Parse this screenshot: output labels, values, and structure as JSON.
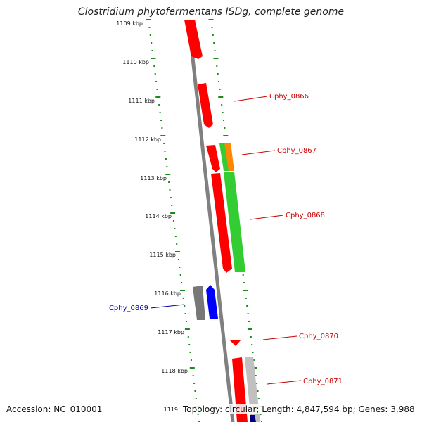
{
  "title": "Clostridium phytofermentans ISDg, complete genome",
  "kbp_ticks": [
    {
      "label": "1109 kbp"
    },
    {
      "label": "1110 kbp"
    },
    {
      "label": "1111 kbp"
    },
    {
      "label": "1112 kbp"
    },
    {
      "label": "1113 kbp"
    },
    {
      "label": "1114 kbp"
    },
    {
      "label": "1115 kbp"
    },
    {
      "label": "1116 kbp"
    },
    {
      "label": "1117 kbp"
    },
    {
      "label": "1118 kbp"
    },
    {
      "label": "1119"
    }
  ],
  "gene_labels": [
    {
      "name": "Cphy_0866",
      "color": "#cc0000"
    },
    {
      "name": "Cphy_0867",
      "color": "#cc0000"
    },
    {
      "name": "Cphy_0868",
      "color": "#cc0000"
    },
    {
      "name": "Cphy_0869",
      "color": "#0000aa"
    },
    {
      "name": "Cphy_0870",
      "color": "#cc0000"
    },
    {
      "name": "Cphy_0871",
      "color": "#cc0000"
    }
  ],
  "colors": {
    "backbone": "#808080",
    "tick_green": "#1a8a1a",
    "gene_red": "#ff0000",
    "gene_green": "#33cc33",
    "gene_orange": "#ff8800",
    "gene_blue": "#0000ff",
    "gene_gray": "#777777",
    "gene_lightgray": "#c0c0c0",
    "gene_navy": "#000080"
  },
  "footer": {
    "accession": "Accession: NC_010001",
    "stats": "Topology: circular; Length: 4,847,594 bp; Genes: 3,988"
  }
}
